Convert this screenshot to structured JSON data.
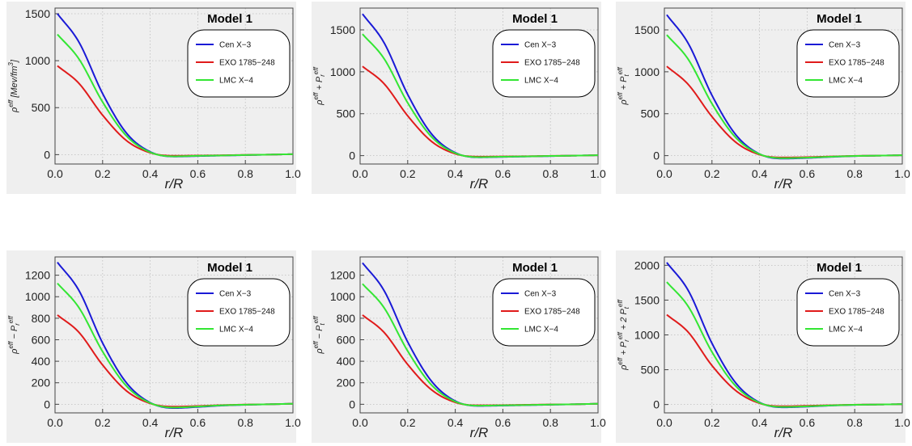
{
  "series_meta": [
    {
      "name": "Cen X−3",
      "color": "#1a1ad6"
    },
    {
      "name": "EXO 1785−248",
      "color": "#e01b1b"
    },
    {
      "name": "LMC X−4",
      "color": "#33e633"
    }
  ],
  "chart_data": [
    {
      "type": "line",
      "title": "Model 1",
      "xlabel": "r/R",
      "ylabel": "ρ^eff [Mev/fm^3]",
      "xlim": [
        0,
        1
      ],
      "ylim": [
        -100,
        1560
      ],
      "xticks": [
        0.0,
        0.2,
        0.4,
        0.6,
        0.8,
        1.0
      ],
      "yticks": [
        0,
        500,
        1000,
        1500
      ],
      "grid": true,
      "legend": "top-right",
      "x": [
        0.01,
        0.1,
        0.2,
        0.3,
        0.4,
        0.5,
        0.6,
        0.7,
        0.8,
        0.9,
        1.0
      ],
      "series": [
        {
          "name": "Cen X−3",
          "values": [
            1500,
            1200,
            650,
            230,
            30,
            -20,
            -15,
            -10,
            -5,
            0,
            5
          ]
        },
        {
          "name": "EXO 1785−248",
          "values": [
            945,
            760,
            420,
            150,
            20,
            -12,
            -10,
            -7,
            -3,
            0,
            5
          ]
        },
        {
          "name": "LMC X−4",
          "values": [
            1280,
            1020,
            560,
            200,
            25,
            -18,
            -13,
            -9,
            -4,
            0,
            5
          ]
        }
      ]
    },
    {
      "type": "line",
      "title": "Model 1",
      "xlabel": "r/R",
      "ylabel": "ρ^eff + P_r^eff",
      "xlim": [
        0,
        1
      ],
      "ylim": [
        -100,
        1760
      ],
      "xticks": [
        0.0,
        0.2,
        0.4,
        0.6,
        0.8,
        1.0
      ],
      "yticks": [
        0,
        500,
        1000,
        1500
      ],
      "grid": true,
      "legend": "top-right",
      "x": [
        0.01,
        0.1,
        0.2,
        0.3,
        0.4,
        0.5,
        0.6,
        0.7,
        0.8,
        0.9,
        1.0
      ],
      "series": [
        {
          "name": "Cen X−3",
          "values": [
            1690,
            1350,
            730,
            260,
            35,
            -20,
            -15,
            -10,
            -5,
            0,
            5
          ]
        },
        {
          "name": "EXO 1785−248",
          "values": [
            1065,
            860,
            475,
            170,
            22,
            -12,
            -10,
            -7,
            -3,
            0,
            5
          ]
        },
        {
          "name": "LMC X−4",
          "values": [
            1450,
            1160,
            630,
            225,
            30,
            -18,
            -13,
            -9,
            -4,
            0,
            5
          ]
        }
      ]
    },
    {
      "type": "line",
      "title": "Model 1",
      "xlabel": "r/R",
      "ylabel": "ρ^eff + P_t^eff",
      "xlim": [
        0,
        1
      ],
      "ylim": [
        -100,
        1760
      ],
      "xticks": [
        0.0,
        0.2,
        0.4,
        0.6,
        0.8,
        1.0
      ],
      "yticks": [
        0,
        500,
        1000,
        1500
      ],
      "grid": true,
      "legend": "top-right",
      "x": [
        0.01,
        0.1,
        0.2,
        0.3,
        0.4,
        0.5,
        0.6,
        0.7,
        0.8,
        0.9,
        1.0
      ],
      "series": [
        {
          "name": "Cen X−3",
          "values": [
            1680,
            1340,
            720,
            250,
            20,
            -35,
            -28,
            -15,
            -5,
            0,
            5
          ]
        },
        {
          "name": "EXO 1785−248",
          "values": [
            1065,
            850,
            465,
            160,
            12,
            -22,
            -18,
            -10,
            -3,
            0,
            5
          ]
        },
        {
          "name": "LMC X−4",
          "values": [
            1440,
            1150,
            620,
            215,
            18,
            -30,
            -24,
            -13,
            -4,
            0,
            5
          ]
        }
      ]
    },
    {
      "type": "line",
      "title": "Model 1",
      "xlabel": "r/R",
      "ylabel": "ρ^eff − P_r^eff",
      "xlim": [
        0,
        1
      ],
      "ylim": [
        -80,
        1370
      ],
      "xticks": [
        0.0,
        0.2,
        0.4,
        0.6,
        0.8,
        1.0
      ],
      "yticks": [
        0,
        200,
        400,
        600,
        800,
        1000,
        1200
      ],
      "grid": true,
      "legend": "top-right",
      "x": [
        0.01,
        0.1,
        0.2,
        0.3,
        0.4,
        0.5,
        0.6,
        0.7,
        0.8,
        0.9,
        1.0
      ],
      "series": [
        {
          "name": "Cen X−3",
          "values": [
            1320,
            1060,
            570,
            200,
            15,
            -35,
            -25,
            -12,
            -5,
            0,
            5
          ]
        },
        {
          "name": "EXO 1785−248",
          "values": [
            830,
            670,
            365,
            125,
            8,
            -22,
            -16,
            -8,
            -3,
            0,
            5
          ]
        },
        {
          "name": "LMC X−4",
          "values": [
            1125,
            900,
            490,
            170,
            12,
            -30,
            -21,
            -10,
            -4,
            0,
            5
          ]
        }
      ]
    },
    {
      "type": "line",
      "title": "Model 1",
      "xlabel": "r/R",
      "ylabel": "ρ^eff − P_t^eff",
      "xlim": [
        0,
        1
      ],
      "ylim": [
        -80,
        1370
      ],
      "xticks": [
        0.0,
        0.2,
        0.4,
        0.6,
        0.8,
        1.0
      ],
      "yticks": [
        0,
        200,
        400,
        600,
        800,
        1000,
        1200
      ],
      "grid": true,
      "legend": "top-right",
      "x": [
        0.01,
        0.1,
        0.2,
        0.3,
        0.4,
        0.5,
        0.6,
        0.7,
        0.8,
        0.9,
        1.0
      ],
      "series": [
        {
          "name": "Cen X−3",
          "values": [
            1315,
            1060,
            580,
            215,
            30,
            -15,
            -12,
            -8,
            -4,
            0,
            5
          ]
        },
        {
          "name": "EXO 1785−248",
          "values": [
            830,
            670,
            370,
            135,
            18,
            -10,
            -8,
            -5,
            -2,
            0,
            5
          ]
        },
        {
          "name": "LMC X−4",
          "values": [
            1120,
            900,
            495,
            180,
            25,
            -13,
            -10,
            -7,
            -3,
            0,
            5
          ]
        }
      ]
    },
    {
      "type": "line",
      "title": "Model 1",
      "xlabel": "r/R",
      "ylabel": "ρ^eff + P_r^eff + 2 P_t^eff",
      "xlim": [
        0,
        1
      ],
      "ylim": [
        -120,
        2120
      ],
      "xticks": [
        0.0,
        0.2,
        0.4,
        0.6,
        0.8,
        1.0
      ],
      "yticks": [
        0,
        500,
        1000,
        1500,
        2000
      ],
      "grid": true,
      "legend": "top-right",
      "x": [
        0.01,
        0.1,
        0.2,
        0.3,
        0.4,
        0.5,
        0.6,
        0.7,
        0.8,
        0.9,
        1.0
      ],
      "series": [
        {
          "name": "Cen X−3",
          "values": [
            2040,
            1640,
            880,
            310,
            30,
            -40,
            -30,
            -15,
            -5,
            0,
            5
          ]
        },
        {
          "name": "EXO 1785−248",
          "values": [
            1290,
            1040,
            560,
            200,
            18,
            -25,
            -18,
            -10,
            -3,
            0,
            5
          ]
        },
        {
          "name": "LMC X−4",
          "values": [
            1760,
            1410,
            755,
            265,
            25,
            -35,
            -26,
            -13,
            -4,
            0,
            5
          ]
        }
      ]
    }
  ]
}
